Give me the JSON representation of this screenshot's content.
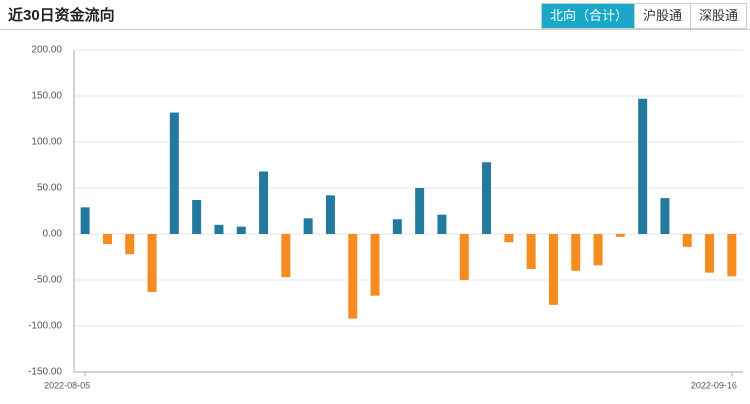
{
  "header": {
    "title": "近30日资金流向",
    "tabs": [
      "北向（合计）",
      "沪股通",
      "深股通"
    ],
    "active_tab": 0
  },
  "chart_data": {
    "type": "bar",
    "categories": [
      "2022-08-05",
      null,
      null,
      null,
      null,
      null,
      null,
      null,
      null,
      null,
      null,
      null,
      null,
      null,
      null,
      null,
      null,
      null,
      null,
      null,
      null,
      null,
      null,
      null,
      null,
      null,
      null,
      null,
      null,
      "2022-09-16"
    ],
    "values": [
      29,
      -11,
      -22,
      -63,
      132,
      37,
      10,
      8,
      68,
      -47,
      17,
      42,
      -92,
      -67,
      16,
      50,
      21,
      -50,
      78,
      -9,
      -38,
      -77,
      -40,
      -34,
      -3,
      147,
      39,
      -14,
      -42,
      -46
    ],
    "positive_color": "#24799f",
    "negative_color": "#f68b1f",
    "ylim": [
      -150,
      200
    ],
    "yticks": [
      {
        "value": -150,
        "label": "-150.00"
      },
      {
        "value": -100,
        "label": "-100.00"
      },
      {
        "value": -50,
        "label": "-50.00"
      },
      {
        "value": 0,
        "label": "0.00"
      },
      {
        "value": 50,
        "label": "50.00"
      },
      {
        "value": 100,
        "label": "100.00"
      },
      {
        "value": 150,
        "label": "150.00"
      },
      {
        "value": 200,
        "label": "200.00"
      }
    ],
    "grid": true
  }
}
